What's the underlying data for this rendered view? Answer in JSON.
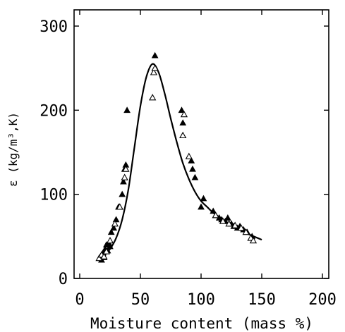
{
  "chart_data": {
    "type": "scatter",
    "title": "",
    "xlabel": "Moisture content (mass %)",
    "ylabel": "ε (kg/m³,K)",
    "xlim": [
      0,
      200
    ],
    "ylim": [
      0,
      300
    ],
    "xticks": [
      "0",
      "50",
      "100",
      "150",
      "200"
    ],
    "yticks": [
      "0",
      "100",
      "200",
      "300"
    ],
    "grid": false,
    "legend": "none",
    "fit_curve": {
      "x": [
        15,
        20,
        25,
        30,
        35,
        40,
        45,
        50,
        55,
        60,
        65,
        70,
        75,
        80,
        85,
        90,
        95,
        100,
        105,
        110,
        115,
        120,
        125,
        130,
        135,
        140,
        145,
        150
      ],
      "y": [
        22,
        27,
        35,
        48,
        70,
        105,
        155,
        205,
        240,
        255,
        245,
        220,
        190,
        162,
        137,
        118,
        103,
        92,
        85,
        78,
        73,
        68,
        63,
        59,
        56,
        52,
        49,
        46
      ]
    },
    "series": [
      {
        "marker": "filled-triangle",
        "x": [
          17,
          18,
          19,
          20,
          21,
          22,
          23,
          24,
          25,
          26,
          28,
          30,
          32,
          35,
          36,
          37,
          38,
          39,
          62,
          84,
          85,
          92,
          93,
          95,
          100,
          102,
          110,
          112,
          115,
          117,
          120,
          122,
          125,
          127,
          130,
          132,
          135,
          138,
          142
        ],
        "y": [
          26,
          22,
          30,
          25,
          35,
          40,
          33,
          42,
          38,
          55,
          60,
          70,
          85,
          100,
          115,
          130,
          135,
          200,
          265,
          200,
          185,
          140,
          130,
          120,
          85,
          95,
          80,
          75,
          72,
          70,
          68,
          72,
          65,
          62,
          60,
          62,
          58,
          55,
          50
        ]
      },
      {
        "marker": "open-triangle",
        "x": [
          16,
          18,
          20,
          22,
          25,
          29,
          33,
          37,
          38,
          60,
          61,
          62,
          85,
          86,
          90,
          112,
          118,
          123,
          128,
          133,
          137,
          141,
          143
        ],
        "y": [
          24,
          28,
          26,
          32,
          45,
          65,
          85,
          120,
          130,
          215,
          245,
          250,
          170,
          195,
          145,
          75,
          68,
          65,
          63,
          60,
          55,
          48,
          45
        ]
      }
    ]
  }
}
